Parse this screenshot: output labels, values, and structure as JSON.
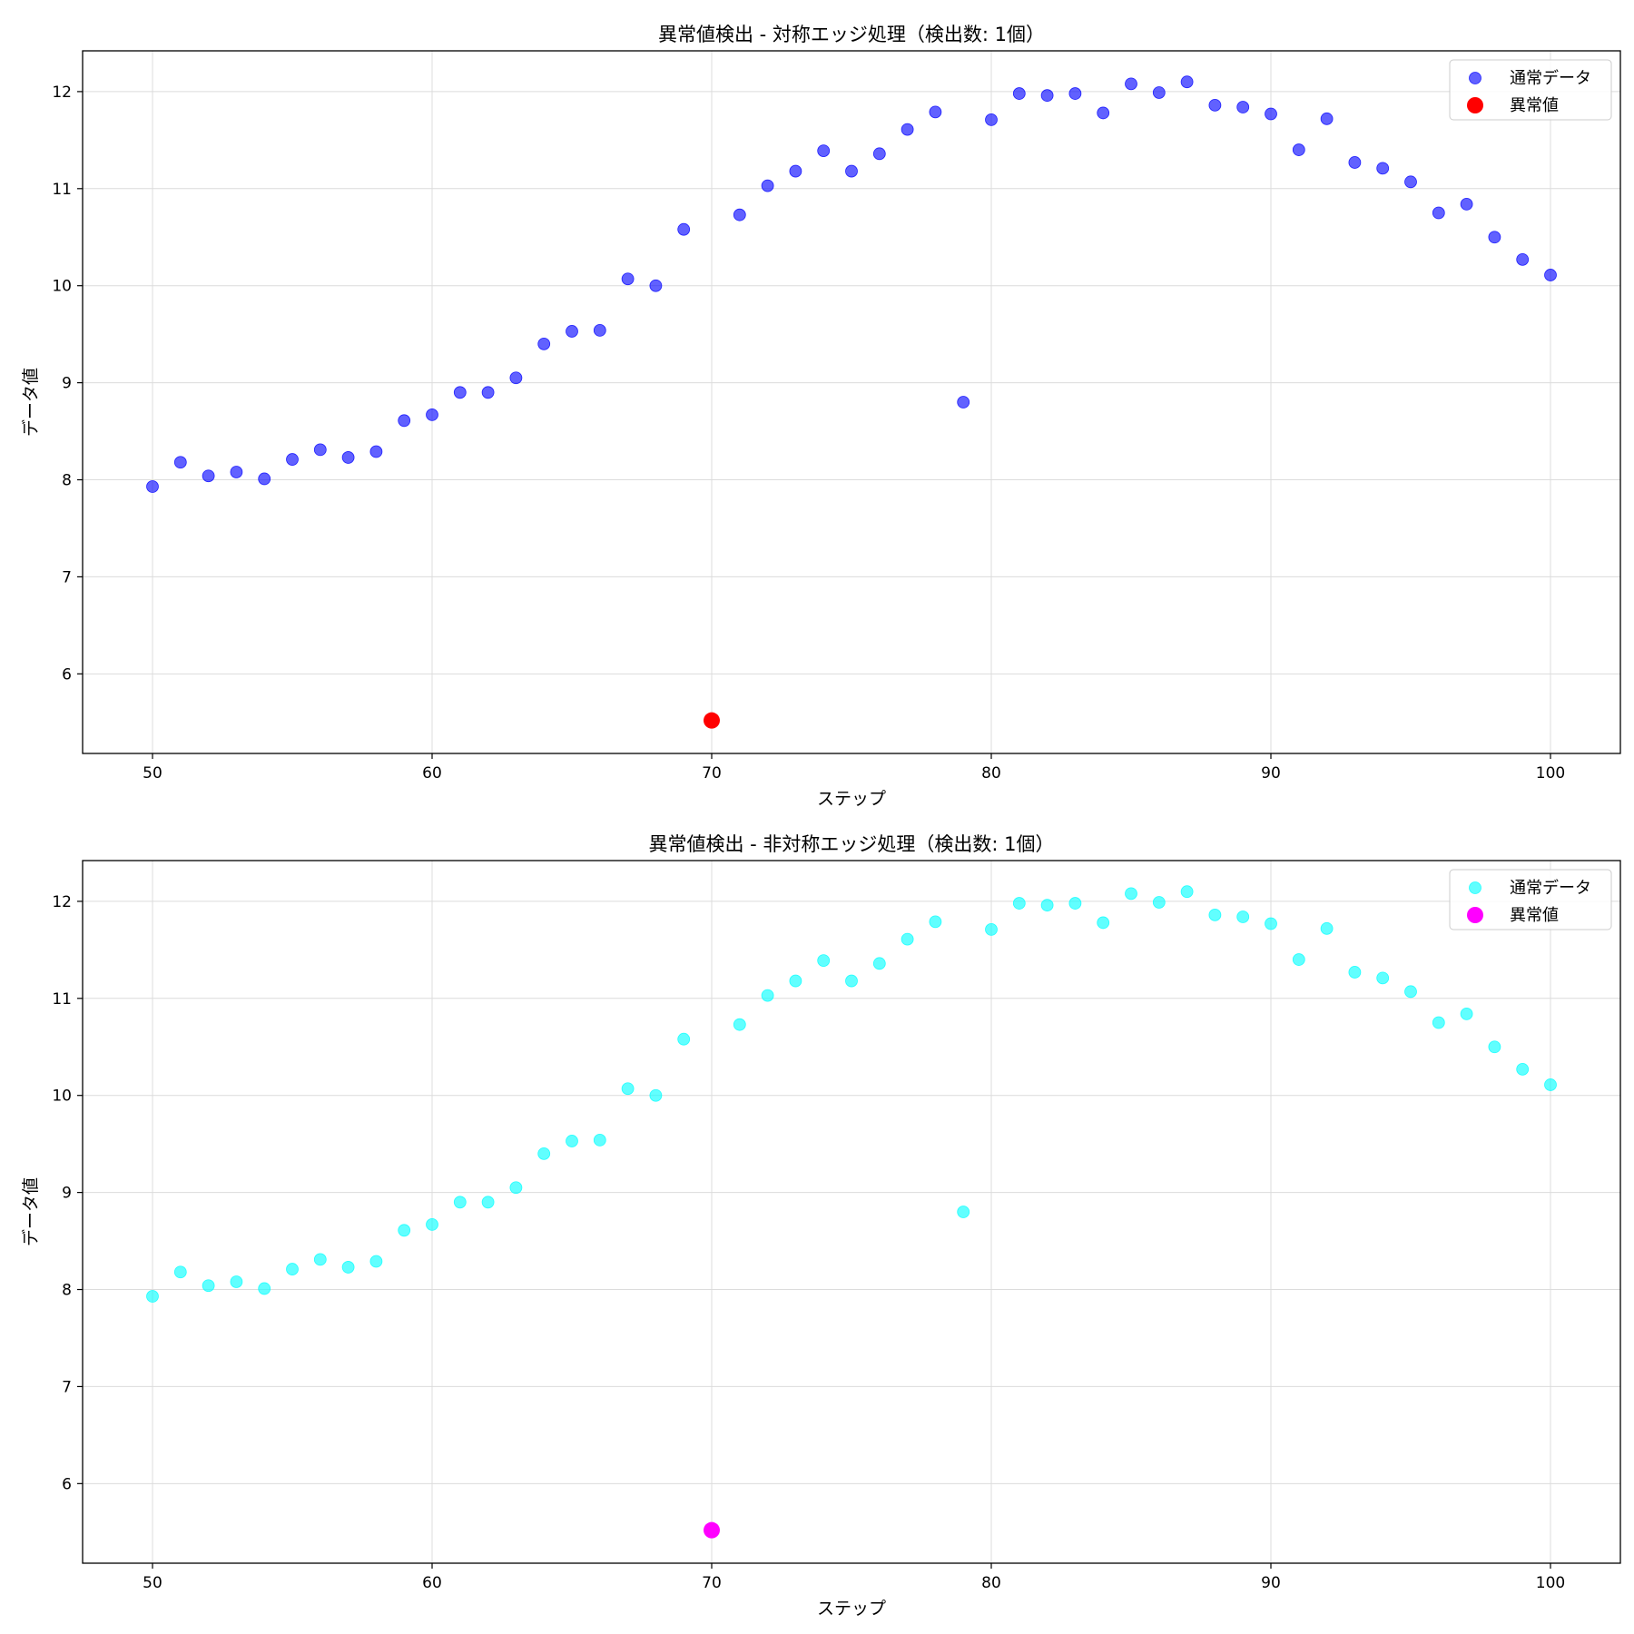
{
  "chart_data": [
    {
      "type": "scatter",
      "title": "異常値検出 - 対称エッジ処理（検出数: 1個）",
      "xlabel": "ステップ",
      "ylabel": "データ値",
      "xlim": [
        47.5,
        102.5
      ],
      "ylim": [
        5.18,
        12.42
      ],
      "xticks": [
        50,
        60,
        70,
        80,
        90,
        100
      ],
      "yticks": [
        6,
        7,
        8,
        9,
        10,
        11,
        12
      ],
      "grid": true,
      "legend_position": "top-right",
      "series": [
        {
          "name": "通常データ",
          "color": "#0000ff",
          "points": [
            [
              50,
              7.93
            ],
            [
              51,
              8.18
            ],
            [
              52,
              8.04
            ],
            [
              53,
              8.08
            ],
            [
              54,
              8.01
            ],
            [
              55,
              8.21
            ],
            [
              56,
              8.31
            ],
            [
              57,
              8.23
            ],
            [
              58,
              8.29
            ],
            [
              59,
              8.61
            ],
            [
              60,
              8.67
            ],
            [
              61,
              8.9
            ],
            [
              62,
              8.9
            ],
            [
              63,
              9.05
            ],
            [
              64,
              9.4
            ],
            [
              65,
              9.53
            ],
            [
              66,
              9.54
            ],
            [
              67,
              10.07
            ],
            [
              68,
              10.0
            ],
            [
              69,
              10.58
            ],
            [
              71,
              10.73
            ],
            [
              72,
              11.03
            ],
            [
              73,
              11.18
            ],
            [
              74,
              11.39
            ],
            [
              75,
              11.18
            ],
            [
              76,
              11.36
            ],
            [
              77,
              11.61
            ],
            [
              78,
              11.79
            ],
            [
              79,
              8.8
            ],
            [
              80,
              11.71
            ],
            [
              81,
              11.98
            ],
            [
              82,
              11.96
            ],
            [
              83,
              11.98
            ],
            [
              84,
              11.78
            ],
            [
              85,
              12.08
            ],
            [
              86,
              11.99
            ],
            [
              87,
              12.1
            ],
            [
              88,
              11.86
            ],
            [
              89,
              11.84
            ],
            [
              90,
              11.77
            ],
            [
              91,
              11.4
            ],
            [
              92,
              11.72
            ],
            [
              93,
              11.27
            ],
            [
              94,
              11.21
            ],
            [
              95,
              11.07
            ],
            [
              96,
              10.75
            ],
            [
              97,
              10.84
            ],
            [
              98,
              10.5
            ],
            [
              99,
              10.27
            ],
            [
              100,
              10.11
            ]
          ]
        },
        {
          "name": "異常値",
          "color": "#ff0000",
          "points": [
            [
              70,
              5.52
            ]
          ]
        }
      ]
    },
    {
      "type": "scatter",
      "title": "異常値検出 - 非対称エッジ処理（検出数: 1個）",
      "xlabel": "ステップ",
      "ylabel": "データ値",
      "xlim": [
        47.5,
        102.5
      ],
      "ylim": [
        5.18,
        12.42
      ],
      "xticks": [
        50,
        60,
        70,
        80,
        90,
        100
      ],
      "yticks": [
        6,
        7,
        8,
        9,
        10,
        11,
        12
      ],
      "grid": true,
      "legend_position": "top-right",
      "series": [
        {
          "name": "通常データ",
          "color": "#00ffff",
          "points": [
            [
              50,
              7.93
            ],
            [
              51,
              8.18
            ],
            [
              52,
              8.04
            ],
            [
              53,
              8.08
            ],
            [
              54,
              8.01
            ],
            [
              55,
              8.21
            ],
            [
              56,
              8.31
            ],
            [
              57,
              8.23
            ],
            [
              58,
              8.29
            ],
            [
              59,
              8.61
            ],
            [
              60,
              8.67
            ],
            [
              61,
              8.9
            ],
            [
              62,
              8.9
            ],
            [
              63,
              9.05
            ],
            [
              64,
              9.4
            ],
            [
              65,
              9.53
            ],
            [
              66,
              9.54
            ],
            [
              67,
              10.07
            ],
            [
              68,
              10.0
            ],
            [
              69,
              10.58
            ],
            [
              71,
              10.73
            ],
            [
              72,
              11.03
            ],
            [
              73,
              11.18
            ],
            [
              74,
              11.39
            ],
            [
              75,
              11.18
            ],
            [
              76,
              11.36
            ],
            [
              77,
              11.61
            ],
            [
              78,
              11.79
            ],
            [
              79,
              8.8
            ],
            [
              80,
              11.71
            ],
            [
              81,
              11.98
            ],
            [
              82,
              11.96
            ],
            [
              83,
              11.98
            ],
            [
              84,
              11.78
            ],
            [
              85,
              12.08
            ],
            [
              86,
              11.99
            ],
            [
              87,
              12.1
            ],
            [
              88,
              11.86
            ],
            [
              89,
              11.84
            ],
            [
              90,
              11.77
            ],
            [
              91,
              11.4
            ],
            [
              92,
              11.72
            ],
            [
              93,
              11.27
            ],
            [
              94,
              11.21
            ],
            [
              95,
              11.07
            ],
            [
              96,
              10.75
            ],
            [
              97,
              10.84
            ],
            [
              98,
              10.5
            ],
            [
              99,
              10.27
            ],
            [
              100,
              10.11
            ]
          ]
        },
        {
          "name": "異常値",
          "color": "#ff00ff",
          "points": [
            [
              70,
              5.52
            ]
          ]
        }
      ]
    }
  ]
}
